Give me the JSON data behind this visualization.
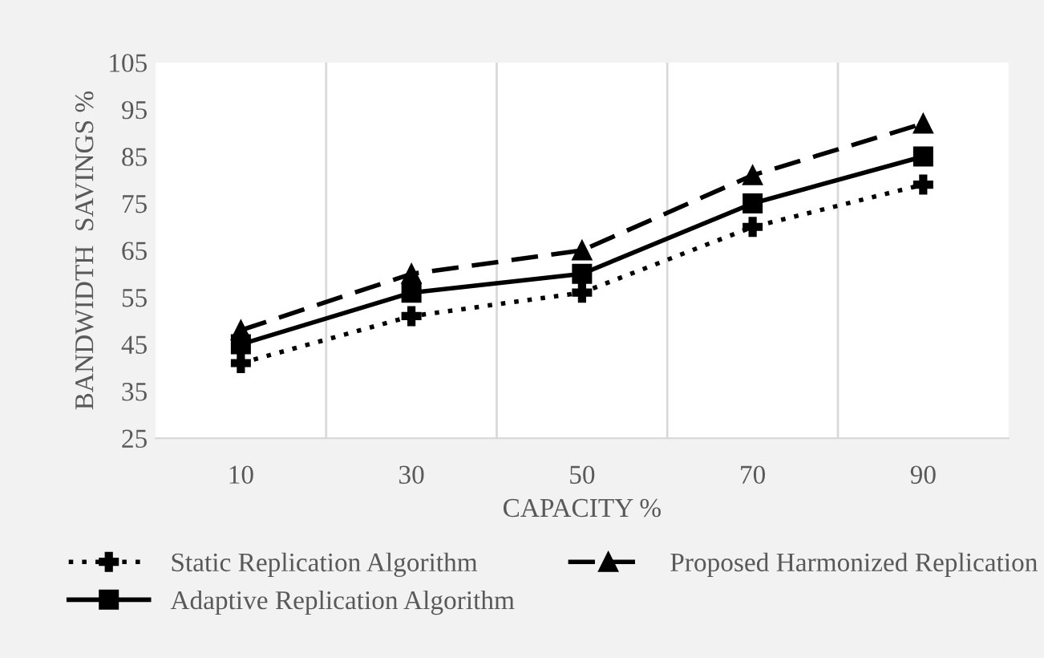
{
  "chart_data": {
    "type": "line",
    "xlabel": "CAPACITY %",
    "ylabel": "BANDWIDTH  SAVINGS %",
    "categories": [
      "10",
      "30",
      "50",
      "70",
      "90"
    ],
    "ylim": [
      25,
      105
    ],
    "yticks": [
      25,
      35,
      45,
      55,
      65,
      75,
      85,
      95,
      105
    ],
    "grid": "x",
    "legend": "bottom",
    "series": [
      {
        "name": "Static Replication Algorithm",
        "color": "#000000",
        "values": [
          41,
          51,
          56,
          70,
          79
        ],
        "marker": "cross",
        "line_style": "dotted"
      },
      {
        "name": "Adaptive Replication Algorithm",
        "color": "#000000",
        "values": [
          45,
          56,
          60,
          75,
          85
        ],
        "marker": "square",
        "line_style": "solid"
      },
      {
        "name": "Proposed Harmonized Replication",
        "color": "#000000",
        "values": [
          48,
          60,
          65,
          81,
          92
        ],
        "marker": "triangle",
        "line_style": "dashed"
      }
    ]
  }
}
